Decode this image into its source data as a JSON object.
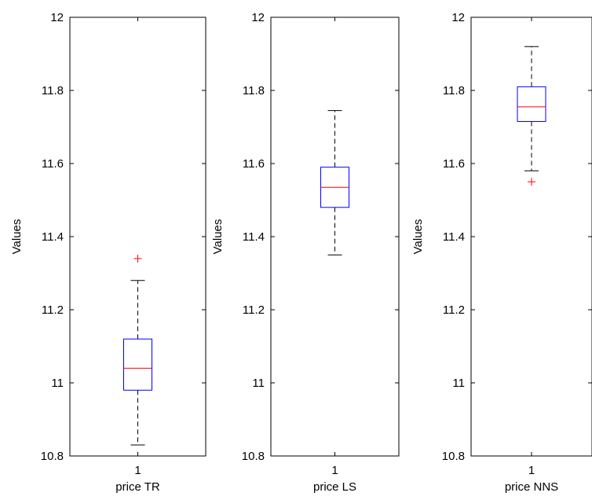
{
  "chart_data": [
    {
      "type": "box",
      "xlabel": "price TR",
      "ylabel": "Values",
      "ylim": [
        10.8,
        12
      ],
      "yticks": [
        "10.8",
        "11",
        "11.2",
        "11.4",
        "11.6",
        "11.8",
        "12"
      ],
      "xticks": [
        "1"
      ],
      "box": {
        "whisker_low": 10.83,
        "q1": 10.98,
        "median": 11.04,
        "q3": 11.12,
        "whisker_high": 11.28,
        "outliers": [
          11.34
        ]
      }
    },
    {
      "type": "box",
      "xlabel": "price LS",
      "ylabel": "Values",
      "ylim": [
        10.8,
        12
      ],
      "yticks": [
        "10.8",
        "11",
        "11.2",
        "11.4",
        "11.6",
        "11.8",
        "12"
      ],
      "xticks": [
        "1"
      ],
      "box": {
        "whisker_low": 11.35,
        "q1": 11.48,
        "median": 11.535,
        "q3": 11.59,
        "whisker_high": 11.745,
        "outliers": []
      }
    },
    {
      "type": "box",
      "xlabel": "price NNS",
      "ylabel": "Values",
      "ylim": [
        10.8,
        12
      ],
      "yticks": [
        "10.8",
        "11",
        "11.2",
        "11.4",
        "11.6",
        "11.8",
        "12"
      ],
      "xticks": [
        "1"
      ],
      "box": {
        "whisker_low": 11.58,
        "q1": 11.715,
        "median": 11.755,
        "q3": 11.81,
        "whisker_high": 11.92,
        "outliers": [
          11.55
        ]
      }
    }
  ],
  "colors": {
    "box": "#0000ff",
    "median": "#ff0000",
    "outlier": "#ff0000",
    "whisker": "#000000",
    "axes": "#000000"
  }
}
